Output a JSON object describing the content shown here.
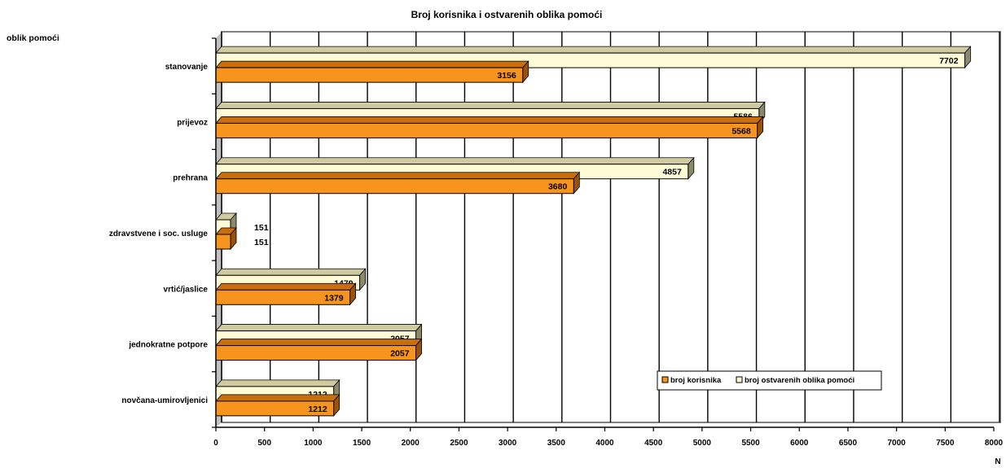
{
  "chart_data": {
    "type": "bar",
    "orientation": "horizontal",
    "title": "Broj korisnika i ostvarenih oblika pomoći",
    "ylabel": "oblik pomoći",
    "xlabel": "N",
    "xlim": [
      0,
      8000
    ],
    "x_ticks": [
      0,
      500,
      1000,
      1500,
      2000,
      2500,
      3000,
      3500,
      4000,
      4500,
      5000,
      5500,
      6000,
      6500,
      7000,
      7500,
      8000
    ],
    "grid": true,
    "legend_position": "bottom-right",
    "categories": [
      "stanovanje",
      "prijevoz",
      "prehrana",
      "zdravstvene i soc. usluge",
      "vrtić/jaslice",
      "jednokratne potpore",
      "novčana-umirovljenici"
    ],
    "series": [
      {
        "name": "broj korisnika",
        "color": "#F7941D",
        "values": [
          3156,
          5568,
          3680,
          151,
          1379,
          2057,
          1212
        ]
      },
      {
        "name": "broj ostvarenih oblika pomoći",
        "color": "#FFFBD6",
        "values": [
          7702,
          5586,
          4857,
          151,
          1479,
          2057,
          1212
        ]
      }
    ]
  }
}
